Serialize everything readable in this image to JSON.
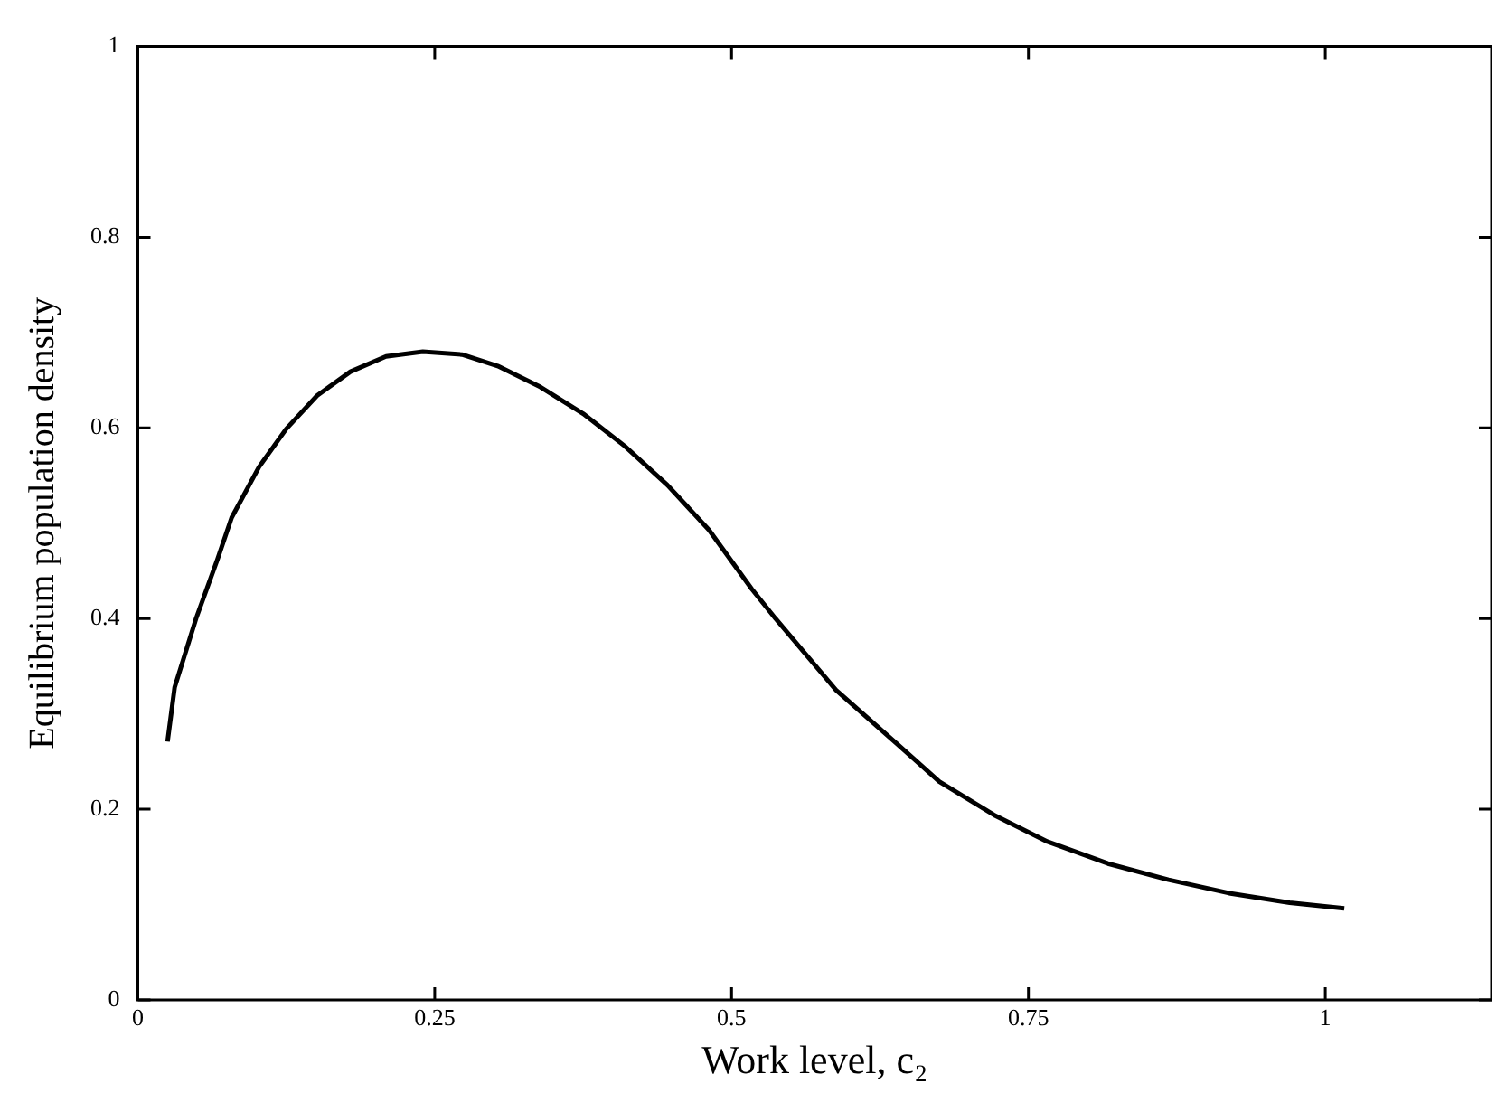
{
  "chart_data": {
    "type": "line",
    "xlabel": "Work level, c₂",
    "ylabel": "Equilibrium population density",
    "xlim": [
      0,
      1.14
    ],
    "xticks": [
      0,
      0.25,
      0.5,
      0.75,
      1
    ],
    "ylim": [
      0,
      1
    ],
    "yticks": [
      0,
      0.2,
      0.4,
      0.6,
      0.8,
      1
    ],
    "grid": false,
    "legend": false,
    "marker": "none",
    "line_style": "solid",
    "series": [
      {
        "color": "#000000",
        "x": [
          0.025,
          0.031,
          0.049,
          0.067,
          0.079,
          0.102,
          0.125,
          0.151,
          0.179,
          0.209,
          0.24,
          0.273,
          0.303,
          0.339,
          0.375,
          0.41,
          0.446,
          0.481,
          0.517,
          0.537,
          0.588,
          0.639,
          0.675,
          0.721,
          0.766,
          0.817,
          0.868,
          0.919,
          0.97,
          1.016
        ],
        "values": [
          0.271,
          0.328,
          0.4,
          0.462,
          0.506,
          0.559,
          0.599,
          0.634,
          0.659,
          0.675,
          0.68,
          0.677,
          0.665,
          0.643,
          0.615,
          0.581,
          0.54,
          0.493,
          0.431,
          0.4,
          0.325,
          0.269,
          0.229,
          0.194,
          0.166,
          0.143,
          0.126,
          0.112,
          0.102,
          0.096
        ]
      }
    ]
  }
}
